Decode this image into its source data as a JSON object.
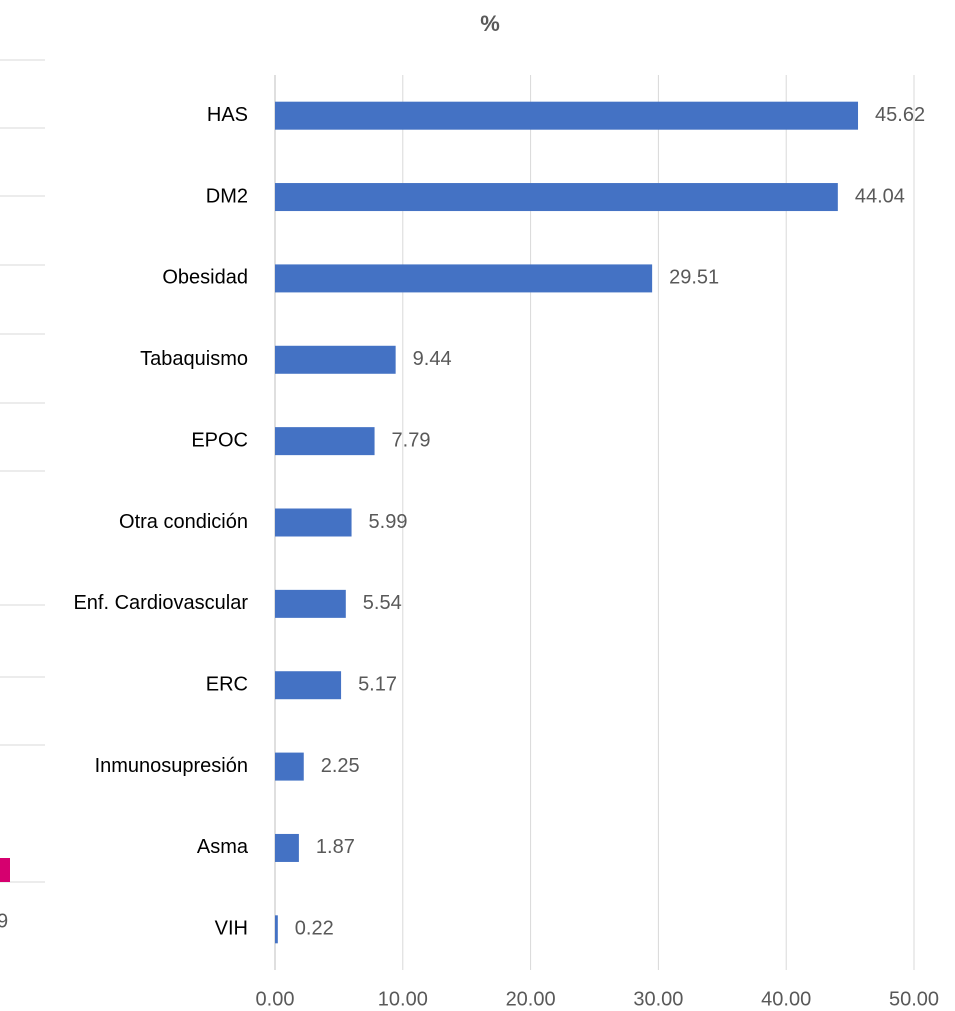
{
  "chart_data": {
    "type": "bar",
    "orientation": "horizontal",
    "title": "%",
    "categories": [
      "HAS",
      "DM2",
      "Obesidad",
      "Tabaquismo",
      "EPOC",
      "Otra condición",
      "Enf. Cardiovascular",
      "ERC",
      "Inmunosupresión",
      "Asma",
      "VIH"
    ],
    "values": [
      45.62,
      44.04,
      29.51,
      9.44,
      7.79,
      5.99,
      5.54,
      5.17,
      2.25,
      1.87,
      0.22
    ],
    "color": "#4472c4",
    "xlim": [
      0,
      50
    ],
    "xticks": [
      {
        "value": 0,
        "label": "0.00"
      },
      {
        "value": 10,
        "label": "10.00"
      },
      {
        "value": 20,
        "label": "20.00"
      },
      {
        "value": 30,
        "label": "30.00"
      },
      {
        "value": 40,
        "label": "40.00"
      },
      {
        "value": 50,
        "label": "50.00"
      }
    ],
    "grid": true
  },
  "left_fragment": {
    "value_label": "9",
    "color": "#d6006f"
  }
}
